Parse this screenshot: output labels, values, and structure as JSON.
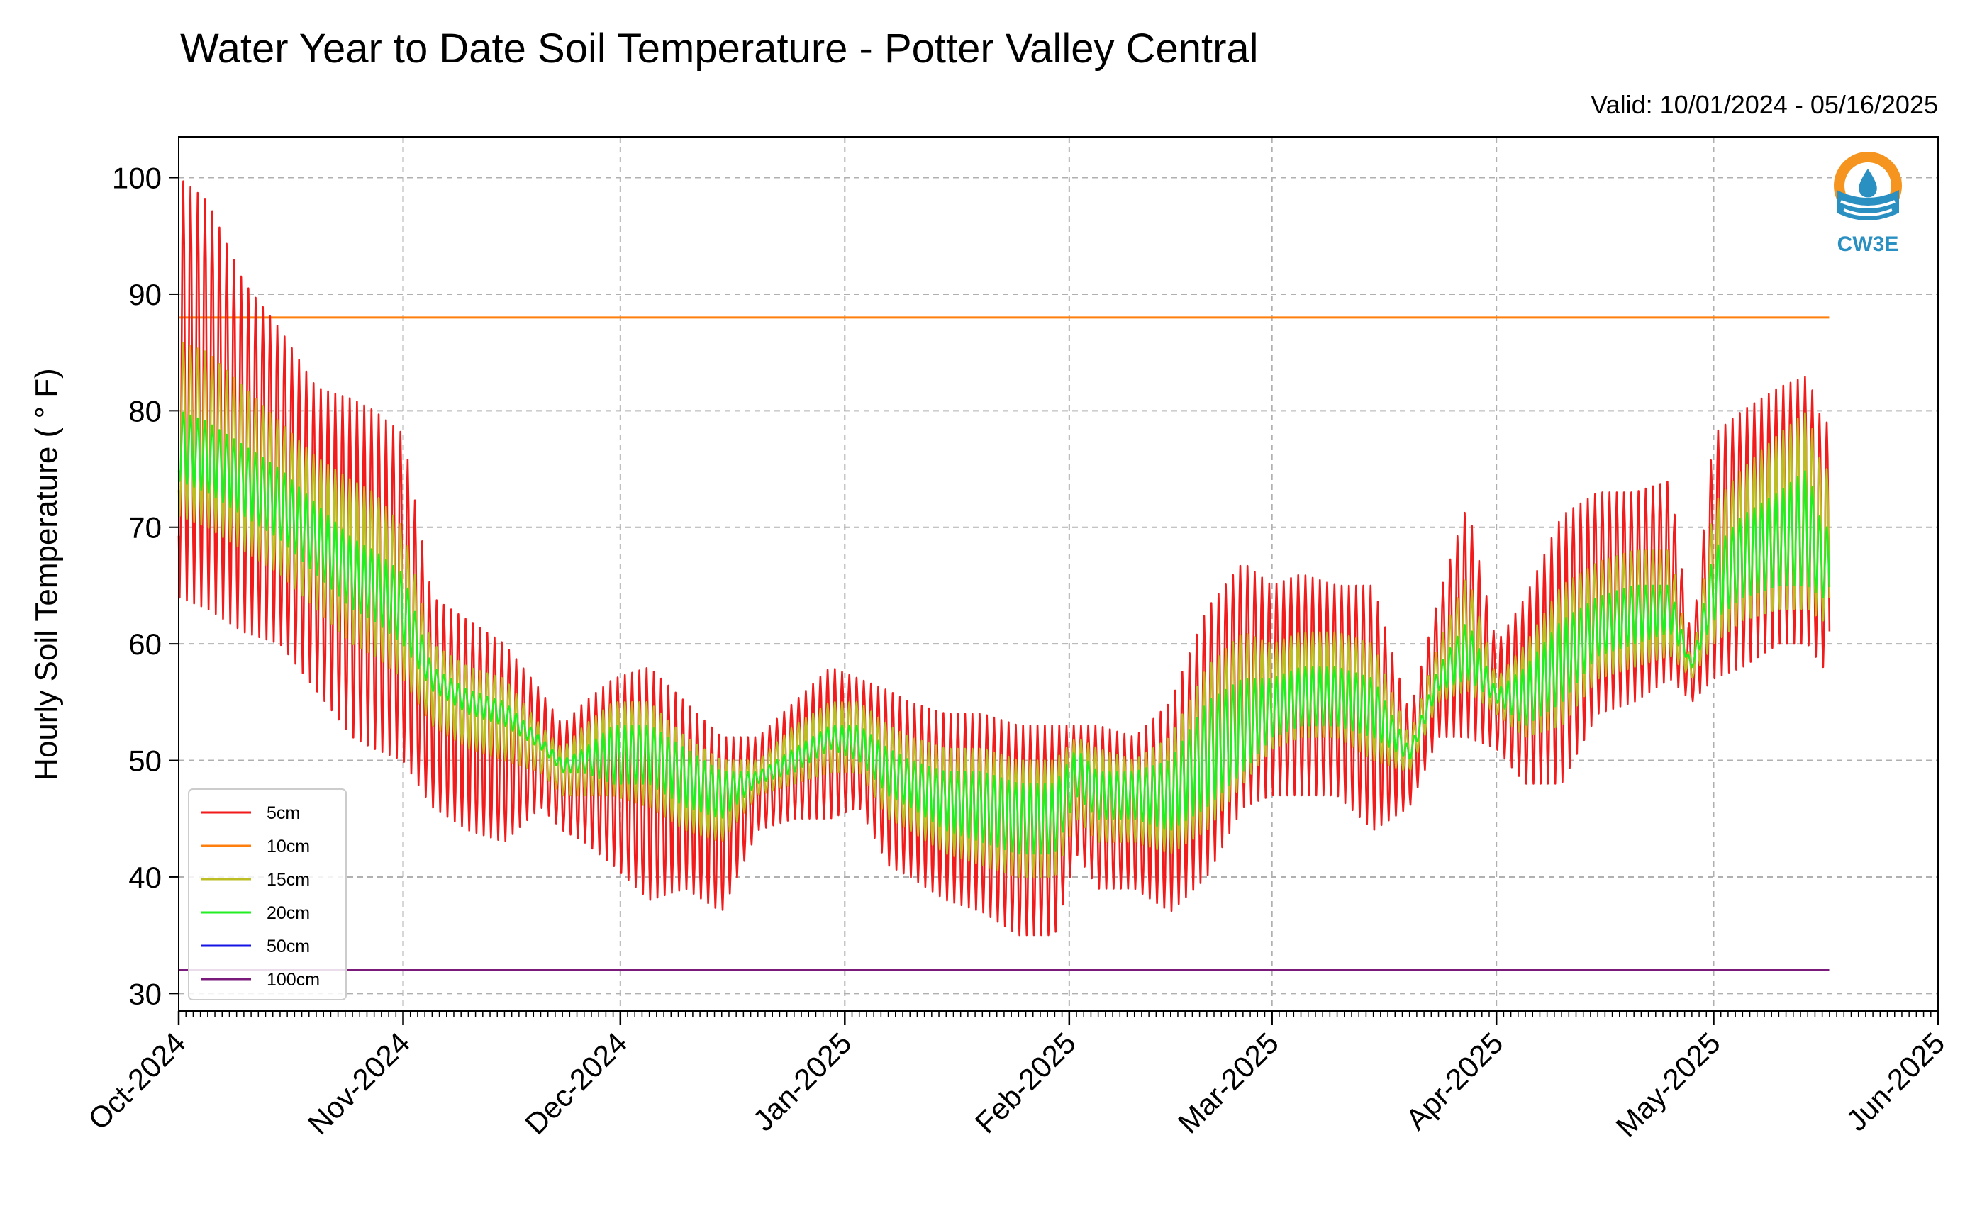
{
  "chart_data": {
    "type": "line",
    "title": "Water Year to Date Soil Temperature - Potter Valley Central",
    "subtitle": "Valid: 10/01/2024 - 05/16/2025",
    "ylabel": "Hourly Soil Temperature ( ° F)",
    "xlabel": "",
    "ylim": [
      28.5,
      103.5
    ],
    "yticks": [
      30,
      40,
      50,
      60,
      70,
      80,
      90,
      100
    ],
    "xlim": [
      "2024-10-01",
      "2025-06-01"
    ],
    "xticks": [
      {
        "date": "2024-10-01",
        "label": "Oct-2024"
      },
      {
        "date": "2024-11-01",
        "label": "Nov-2024"
      },
      {
        "date": "2024-12-01",
        "label": "Dec-2024"
      },
      {
        "date": "2025-01-01",
        "label": "Jan-2025"
      },
      {
        "date": "2025-02-01",
        "label": "Feb-2025"
      },
      {
        "date": "2025-03-01",
        "label": "Mar-2025"
      },
      {
        "date": "2025-04-01",
        "label": "Apr-2025"
      },
      {
        "date": "2025-05-01",
        "label": "May-2025"
      },
      {
        "date": "2025-06-01",
        "label": "Jun-2025"
      }
    ],
    "grid": true,
    "legend_position": "lower-left",
    "logo_text": "CW3E",
    "series": [
      {
        "name": "5cm",
        "color": "#f21a1a",
        "style": "daily-range",
        "dates": [
          "2024-10-01",
          "2024-10-05",
          "2024-10-10",
          "2024-10-15",
          "2024-10-20",
          "2024-10-25",
          "2024-10-28",
          "2024-11-01",
          "2024-11-05",
          "2024-11-10",
          "2024-11-15",
          "2024-11-20",
          "2024-11-23",
          "2024-11-26",
          "2024-11-30",
          "2024-12-05",
          "2024-12-10",
          "2024-12-15",
          "2024-12-20",
          "2024-12-25",
          "2024-12-30",
          "2025-01-03",
          "2025-01-07",
          "2025-01-10",
          "2025-01-15",
          "2025-01-20",
          "2025-01-25",
          "2025-01-30",
          "2025-02-02",
          "2025-02-05",
          "2025-02-10",
          "2025-02-15",
          "2025-02-20",
          "2025-02-25",
          "2025-03-01",
          "2025-03-05",
          "2025-03-10",
          "2025-03-15",
          "2025-03-20",
          "2025-03-24",
          "2025-03-28",
          "2025-04-01",
          "2025-04-05",
          "2025-04-10",
          "2025-04-15",
          "2025-04-20",
          "2025-04-25",
          "2025-04-28",
          "2025-05-01",
          "2025-05-05",
          "2025-05-10",
          "2025-05-14",
          "2025-05-16"
        ],
        "daily_min": [
          64,
          63,
          61,
          60,
          56,
          52,
          51,
          50,
          46,
          44,
          43,
          46,
          44,
          43,
          41,
          38,
          39,
          37,
          44,
          45,
          45,
          46,
          41,
          40,
          38,
          37,
          35,
          35,
          42,
          39,
          39,
          37,
          40,
          46,
          47,
          47,
          47,
          44,
          46,
          52,
          52,
          51,
          48,
          48,
          54,
          55,
          57,
          55,
          57,
          58,
          60,
          60,
          58
        ],
        "daily_max": [
          100,
          98,
          91,
          87,
          82,
          81,
          80,
          78,
          64,
          62,
          60,
          56,
          53,
          55,
          57,
          58,
          55,
          52,
          52,
          55,
          58,
          57,
          56,
          55,
          54,
          54,
          53,
          53,
          53,
          53,
          52,
          55,
          63,
          67,
          65,
          66,
          65,
          65,
          54,
          64,
          72,
          60,
          64,
          71,
          73,
          73,
          74,
          60,
          78,
          80,
          82,
          83,
          79
        ]
      },
      {
        "name": "10cm",
        "color": "#ff7f0e",
        "style": "flat",
        "value": 88
      },
      {
        "name": "15cm",
        "color": "#bcbd22",
        "style": "daily-range",
        "dates": [
          "2024-10-01",
          "2024-10-05",
          "2024-10-10",
          "2024-10-15",
          "2024-10-20",
          "2024-10-25",
          "2024-10-28",
          "2024-11-01",
          "2024-11-05",
          "2024-11-10",
          "2024-11-15",
          "2024-11-20",
          "2024-11-23",
          "2024-11-26",
          "2024-11-30",
          "2024-12-05",
          "2024-12-10",
          "2024-12-15",
          "2024-12-20",
          "2024-12-25",
          "2024-12-30",
          "2025-01-03",
          "2025-01-07",
          "2025-01-10",
          "2025-01-15",
          "2025-01-20",
          "2025-01-25",
          "2025-01-30",
          "2025-02-02",
          "2025-02-05",
          "2025-02-10",
          "2025-02-15",
          "2025-02-20",
          "2025-02-25",
          "2025-03-01",
          "2025-03-05",
          "2025-03-10",
          "2025-03-15",
          "2025-03-20",
          "2025-03-24",
          "2025-03-28",
          "2025-04-01",
          "2025-04-05",
          "2025-04-10",
          "2025-04-15",
          "2025-04-20",
          "2025-04-25",
          "2025-04-28",
          "2025-05-01",
          "2025-05-05",
          "2025-05-10",
          "2025-05-14",
          "2025-05-16"
        ],
        "daily_min": [
          71,
          70,
          68,
          66,
          63,
          60,
          59,
          57,
          53,
          51,
          50,
          49,
          47,
          47,
          47,
          46,
          44,
          43,
          47,
          48,
          49,
          49,
          45,
          44,
          42,
          41,
          40,
          40,
          45,
          43,
          43,
          42,
          44,
          48,
          51,
          52,
          52,
          50,
          49,
          55,
          56,
          54,
          52,
          53,
          57,
          58,
          59,
          57,
          60,
          62,
          63,
          63,
          62
        ],
        "daily_max": [
          86,
          85,
          82,
          79,
          76,
          74,
          73,
          70,
          60,
          58,
          57,
          53,
          51,
          53,
          55,
          55,
          52,
          50,
          50,
          53,
          55,
          55,
          53,
          52,
          51,
          51,
          50,
          50,
          52,
          51,
          50,
          52,
          58,
          61,
          60,
          61,
          61,
          60,
          52,
          60,
          66,
          57,
          60,
          65,
          67,
          68,
          68,
          58,
          72,
          75,
          78,
          80,
          75
        ]
      },
      {
        "name": "20cm",
        "color": "#22ee22",
        "style": "daily-range",
        "dates": [
          "2024-10-01",
          "2024-10-05",
          "2024-10-10",
          "2024-10-15",
          "2024-10-20",
          "2024-10-25",
          "2024-10-28",
          "2024-11-01",
          "2024-11-05",
          "2024-11-10",
          "2024-11-15",
          "2024-11-20",
          "2024-11-23",
          "2024-11-26",
          "2024-11-30",
          "2024-12-05",
          "2024-12-10",
          "2024-12-15",
          "2024-12-20",
          "2024-12-25",
          "2024-12-30",
          "2025-01-03",
          "2025-01-07",
          "2025-01-10",
          "2025-01-15",
          "2025-01-20",
          "2025-01-25",
          "2025-01-30",
          "2025-02-02",
          "2025-02-05",
          "2025-02-10",
          "2025-02-15",
          "2025-02-20",
          "2025-02-25",
          "2025-03-01",
          "2025-03-05",
          "2025-03-10",
          "2025-03-15",
          "2025-03-20",
          "2025-03-24",
          "2025-03-28",
          "2025-04-01",
          "2025-04-05",
          "2025-04-10",
          "2025-04-15",
          "2025-04-20",
          "2025-04-25",
          "2025-04-28",
          "2025-05-01",
          "2025-05-05",
          "2025-05-10",
          "2025-05-14",
          "2025-05-16"
        ],
        "daily_min": [
          74,
          73,
          71,
          69,
          66,
          63,
          62,
          60,
          56,
          54,
          53,
          51,
          49,
          49,
          48,
          48,
          46,
          45,
          48,
          49,
          51,
          50,
          47,
          46,
          44,
          43,
          42,
          42,
          47,
          45,
          45,
          44,
          46,
          49,
          52,
          53,
          53,
          52,
          50,
          56,
          57,
          55,
          53,
          55,
          59,
          60,
          61,
          58,
          62,
          64,
          65,
          65,
          64
        ],
        "daily_max": [
          80,
          79,
          77,
          75,
          72,
          69,
          68,
          66,
          58,
          56,
          55,
          52,
          50,
          51,
          53,
          53,
          51,
          49,
          49,
          51,
          53,
          53,
          51,
          50,
          49,
          49,
          48,
          48,
          51,
          49,
          49,
          50,
          55,
          57,
          57,
          58,
          58,
          57,
          51,
          58,
          62,
          56,
          58,
          62,
          64,
          65,
          65,
          58,
          68,
          71,
          73,
          75,
          70
        ]
      },
      {
        "name": "50cm",
        "color": "#1414e6",
        "style": "flat",
        "value": 32
      },
      {
        "name": "100cm",
        "color": "#7a1a7a",
        "style": "flat",
        "value": 32
      }
    ]
  }
}
